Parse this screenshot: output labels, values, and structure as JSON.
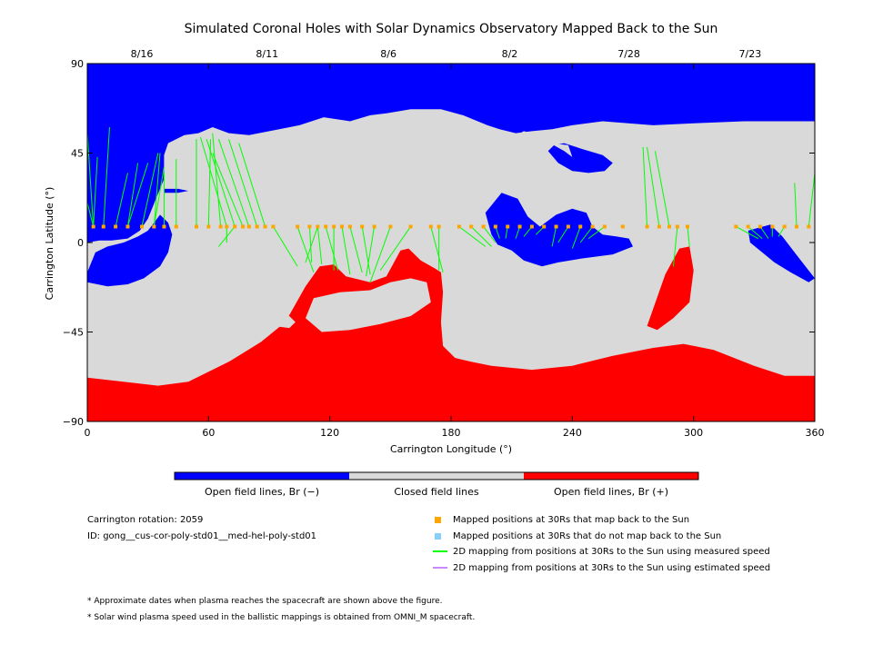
{
  "chart_data": {
    "type": "map",
    "title": "Simulated Coronal Holes with Solar Dynamics Observatory Mapped Back to the Sun",
    "xlabel": "Carrington Longitude (°)",
    "ylabel": "Carrington Latitude (°)",
    "xlim": [
      0,
      360
    ],
    "ylim": [
      -90,
      90
    ],
    "x_ticks": [
      "0",
      "60",
      "120",
      "180",
      "240",
      "300",
      "360"
    ],
    "y_ticks": [
      "90",
      "45",
      "0",
      "−45",
      "−90"
    ],
    "top_dates": [
      {
        "label": "8/16",
        "lon": 27
      },
      {
        "label": "8/11",
        "lon": 89
      },
      {
        "label": "8/6",
        "lon": 149
      },
      {
        "label": "8/2",
        "lon": 209
      },
      {
        "label": "7/28",
        "lon": 268
      },
      {
        "label": "7/23",
        "lon": 328
      }
    ],
    "colors": {
      "negative": "#0000ff",
      "closed": "#d9d9d9",
      "positive": "#ff0000",
      "mapped": "#ffa500",
      "unmapped": "#87cefa",
      "measured": "#00ff00",
      "estimated": "#cc88ff"
    },
    "regions": {
      "north_negative_hole": [
        [
          0,
          90
        ],
        [
          360,
          90
        ],
        [
          360,
          61
        ],
        [
          345,
          61
        ],
        [
          325,
          61
        ],
        [
          300,
          60
        ],
        [
          280,
          59
        ],
        [
          255,
          61
        ],
        [
          240,
          59
        ],
        [
          230,
          57
        ],
        [
          220,
          56
        ],
        [
          212,
          55
        ],
        [
          204,
          57
        ],
        [
          198,
          59
        ],
        [
          186,
          64
        ],
        [
          175,
          67
        ],
        [
          160,
          67
        ],
        [
          148,
          65
        ],
        [
          140,
          64
        ],
        [
          130,
          61
        ],
        [
          117,
          63
        ],
        [
          105,
          59
        ],
        [
          95,
          57
        ],
        [
          80,
          54
        ],
        [
          70,
          55
        ],
        [
          62,
          58
        ],
        [
          55,
          55
        ],
        [
          48,
          54
        ],
        [
          40,
          50
        ],
        [
          38,
          44
        ],
        [
          38,
          32
        ],
        [
          34,
          22
        ],
        [
          30,
          12
        ],
        [
          26,
          6
        ],
        [
          20,
          2
        ],
        [
          12,
          1
        ],
        [
          6,
          1
        ],
        [
          0,
          0
        ]
      ],
      "north_negative_lobe": [
        [
          216,
          56
        ],
        [
          207,
          51
        ],
        [
          207,
          46
        ],
        [
          212,
          43
        ],
        [
          220,
          44
        ],
        [
          224,
          50
        ],
        [
          220,
          55
        ]
      ],
      "pole_loop_a": [
        [
          228,
          46
        ],
        [
          233,
          40
        ],
        [
          240,
          36
        ],
        [
          248,
          35
        ],
        [
          256,
          36
        ],
        [
          260,
          40
        ],
        [
          255,
          44
        ],
        [
          245,
          47
        ],
        [
          236,
          50
        ],
        [
          231,
          49
        ]
      ],
      "pole_loop_b": [
        [
          229,
          50
        ],
        [
          236,
          46
        ],
        [
          240,
          43
        ],
        [
          238,
          49
        ]
      ],
      "tongue_west": [
        [
          38,
          27
        ],
        [
          45,
          27
        ],
        [
          50,
          26
        ],
        [
          45,
          25
        ],
        [
          38,
          25
        ]
      ],
      "south_negative_hole_west": [
        [
          0,
          -15
        ],
        [
          0,
          -20
        ],
        [
          10,
          -22
        ],
        [
          20,
          -21
        ],
        [
          28,
          -18
        ],
        [
          36,
          -12
        ],
        [
          40,
          -5
        ],
        [
          42,
          4
        ],
        [
          40,
          10
        ],
        [
          36,
          14
        ],
        [
          30,
          6
        ],
        [
          25,
          3
        ],
        [
          18,
          0
        ],
        [
          10,
          -2
        ],
        [
          4,
          -5
        ]
      ],
      "cross_hole_center": [
        [
          197,
          15
        ],
        [
          205,
          25
        ],
        [
          213,
          22
        ],
        [
          218,
          13
        ],
        [
          224,
          8
        ],
        [
          232,
          14
        ],
        [
          240,
          17
        ],
        [
          247,
          15
        ],
        [
          250,
          8
        ],
        [
          255,
          4
        ],
        [
          262,
          3
        ],
        [
          268,
          2
        ],
        [
          270,
          -2
        ],
        [
          260,
          -6
        ],
        [
          245,
          -8
        ],
        [
          233,
          -10
        ],
        [
          225,
          -12
        ],
        [
          216,
          -9
        ],
        [
          210,
          -4
        ],
        [
          203,
          -1
        ],
        [
          200,
          4
        ]
      ],
      "small_hole_right": [
        [
          327,
          6
        ],
        [
          338,
          9
        ],
        [
          344,
          3
        ],
        [
          350,
          -5
        ],
        [
          360,
          -18
        ],
        [
          357,
          -20
        ],
        [
          348,
          -15
        ],
        [
          340,
          -10
        ],
        [
          334,
          -5
        ],
        [
          328,
          0
        ]
      ],
      "south_positive_main": [
        [
          0,
          -68
        ],
        [
          35,
          -72
        ],
        [
          50,
          -70
        ],
        [
          70,
          -60
        ],
        [
          86,
          -50
        ],
        [
          98,
          -40
        ],
        [
          108,
          -22
        ],
        [
          115,
          -12
        ],
        [
          122,
          -11
        ],
        [
          128,
          -17
        ],
        [
          140,
          -20
        ],
        [
          148,
          -17
        ],
        [
          155,
          -4
        ],
        [
          159,
          -3
        ],
        [
          165,
          -9
        ],
        [
          172,
          -13
        ],
        [
          175,
          -15
        ],
        [
          176,
          -25
        ],
        [
          175,
          -40
        ],
        [
          176,
          -52
        ],
        [
          182,
          -58
        ],
        [
          190,
          -60
        ],
        [
          200,
          -62
        ],
        [
          220,
          -64
        ],
        [
          240,
          -62
        ],
        [
          260,
          -57
        ],
        [
          280,
          -53
        ],
        [
          295,
          -51
        ],
        [
          310,
          -54
        ],
        [
          330,
          -62
        ],
        [
          345,
          -67
        ],
        [
          360,
          -67
        ],
        [
          360,
          -90
        ],
        [
          0,
          -90
        ]
      ],
      "positive_flare": [
        [
          277,
          -42
        ],
        [
          286,
          -16
        ],
        [
          293,
          -3
        ],
        [
          298,
          -2
        ],
        [
          300,
          -14
        ],
        [
          298,
          -30
        ],
        [
          290,
          -38
        ],
        [
          282,
          -44
        ]
      ],
      "closed_island_left": [
        [
          90,
          -39
        ],
        [
          100,
          -37
        ],
        [
          103,
          -40
        ],
        [
          100,
          -43
        ],
        [
          92,
          -42
        ]
      ],
      "closed_island_center": [
        [
          108,
          -38
        ],
        [
          112,
          -28
        ],
        [
          125,
          -25
        ],
        [
          140,
          -24
        ],
        [
          150,
          -20
        ],
        [
          160,
          -18
        ],
        [
          168,
          -20
        ],
        [
          170,
          -30
        ],
        [
          160,
          -37
        ],
        [
          145,
          -41
        ],
        [
          130,
          -44
        ],
        [
          116,
          -45
        ]
      ]
    },
    "mapping": [
      {
        "x": 3,
        "y": 8,
        "to": [
          [
            5,
            43
          ],
          [
            0,
            55
          ],
          [
            0,
            20
          ]
        ]
      },
      {
        "x": 8,
        "y": 8,
        "to": [
          [
            11,
            58
          ]
        ]
      },
      {
        "x": 14,
        "y": 8,
        "to": [
          [
            20,
            35
          ]
        ]
      },
      {
        "x": 20,
        "y": 8,
        "to": [
          [
            30,
            40
          ],
          [
            25,
            40
          ]
        ]
      },
      {
        "x": 27,
        "y": 8,
        "to": [
          [
            35,
            45
          ]
        ]
      },
      {
        "x": 33,
        "y": 8,
        "to": [
          [
            38,
            38
          ],
          [
            36,
            45
          ]
        ]
      },
      {
        "x": 38,
        "y": 8,
        "to": [
          [
            38,
            35
          ]
        ]
      },
      {
        "x": 44,
        "y": 8,
        "to": [
          [
            44,
            42
          ]
        ]
      },
      {
        "x": 54,
        "y": 8,
        "to": [
          [
            54,
            52
          ]
        ]
      },
      {
        "x": 60,
        "y": 8,
        "to": [
          [
            61,
            52
          ]
        ]
      },
      {
        "x": 66,
        "y": 8,
        "to": [
          [
            62,
            55
          ]
        ]
      },
      {
        "x": 69,
        "y": 8,
        "to": [
          [
            56,
            53
          ],
          [
            69,
            0
          ]
        ]
      },
      {
        "x": 73,
        "y": 8,
        "to": [
          [
            59,
            52
          ],
          [
            65,
            -2
          ]
        ]
      },
      {
        "x": 77,
        "y": 8,
        "to": [
          [
            62,
            45
          ]
        ]
      },
      {
        "x": 80,
        "y": 8,
        "to": [
          [
            65,
            52
          ]
        ]
      },
      {
        "x": 84,
        "y": 8,
        "to": [
          [
            70,
            52
          ]
        ]
      },
      {
        "x": 88,
        "y": 8,
        "to": [
          [
            75,
            50
          ]
        ]
      },
      {
        "x": 92,
        "y": 8,
        "to": [
          [
            104,
            -12
          ]
        ]
      },
      {
        "x": 104,
        "y": 8,
        "to": [
          [
            112,
            -15
          ]
        ]
      },
      {
        "x": 110,
        "y": 8,
        "to": [
          [
            111,
            -10
          ]
        ]
      },
      {
        "x": 114,
        "y": 8,
        "to": [
          [
            108,
            -10
          ],
          [
            116,
            -11
          ]
        ]
      },
      {
        "x": 118,
        "y": 8,
        "to": [
          [
            124,
            -14
          ]
        ]
      },
      {
        "x": 122,
        "y": 8,
        "to": [
          [
            122,
            -14
          ]
        ]
      },
      {
        "x": 126,
        "y": 8,
        "to": [
          [
            130,
            -16
          ]
        ]
      },
      {
        "x": 130,
        "y": 8,
        "to": [
          [
            136,
            -15
          ]
        ]
      },
      {
        "x": 136,
        "y": 8,
        "to": [
          [
            140,
            -16
          ]
        ]
      },
      {
        "x": 142,
        "y": 8,
        "to": [
          [
            138,
            -17
          ]
        ]
      },
      {
        "x": 150,
        "y": 8,
        "to": [
          [
            140,
            -20
          ]
        ]
      },
      {
        "x": 160,
        "y": 8,
        "to": [
          [
            145,
            -14
          ]
        ]
      },
      {
        "x": 170,
        "y": 8,
        "to": [
          [
            176,
            -15
          ]
        ]
      },
      {
        "x": 174,
        "y": 8,
        "to": [
          [
            174,
            -14
          ]
        ]
      },
      {
        "x": 184,
        "y": 8,
        "to": [
          [
            197,
            -2
          ]
        ]
      },
      {
        "x": 190,
        "y": 8,
        "to": [
          [
            200,
            -2
          ]
        ]
      },
      {
        "x": 196,
        "y": 8,
        "to": [
          [
            202,
            0
          ]
        ]
      },
      {
        "x": 202,
        "y": 8,
        "to": [
          [
            204,
            2
          ]
        ]
      },
      {
        "x": 208,
        "y": 8,
        "to": [
          [
            207,
            2
          ]
        ]
      },
      {
        "x": 214,
        "y": 8,
        "to": [
          [
            212,
            2
          ]
        ]
      },
      {
        "x": 220,
        "y": 8,
        "to": [
          [
            216,
            3
          ]
        ]
      },
      {
        "x": 226,
        "y": 8,
        "to": [
          [
            222,
            4
          ]
        ]
      },
      {
        "x": 232,
        "y": 8,
        "to": [
          [
            230,
            -2
          ]
        ]
      },
      {
        "x": 238,
        "y": 8,
        "to": [
          [
            233,
            0
          ]
        ]
      },
      {
        "x": 244,
        "y": 8,
        "to": [
          [
            240,
            -3
          ]
        ]
      },
      {
        "x": 250,
        "y": 8,
        "to": [
          [
            244,
            0
          ]
        ]
      },
      {
        "x": 256,
        "y": 8,
        "to": [
          [
            248,
            2
          ]
        ]
      },
      {
        "x": 265,
        "y": 8,
        "to": [
          [
            264,
            8
          ]
        ]
      },
      {
        "x": 277,
        "y": 8,
        "to": [
          [
            275,
            48
          ]
        ]
      },
      {
        "x": 283,
        "y": 8,
        "to": [
          [
            277,
            48
          ]
        ]
      },
      {
        "x": 288,
        "y": 8,
        "to": [
          [
            281,
            46
          ]
        ]
      },
      {
        "x": 292,
        "y": 8,
        "to": [
          [
            290,
            -12
          ]
        ]
      },
      {
        "x": 297,
        "y": 8,
        "to": [
          [
            298,
            -2
          ]
        ]
      },
      {
        "x": 321,
        "y": 8,
        "to": [
          [
            332,
            2
          ]
        ]
      },
      {
        "x": 327,
        "y": 8,
        "to": [
          [
            334,
            2
          ]
        ]
      },
      {
        "x": 333,
        "y": 8,
        "to": [
          [
            337,
            2
          ]
        ]
      },
      {
        "x": 339,
        "y": 8,
        "to": [
          [
            339,
            3
          ]
        ]
      },
      {
        "x": 345,
        "y": 8,
        "to": [
          [
            342,
            3
          ]
        ]
      },
      {
        "x": 351,
        "y": 8,
        "to": [
          [
            350,
            30
          ]
        ]
      },
      {
        "x": 357,
        "y": 8,
        "to": [
          [
            360,
            35
          ]
        ]
      }
    ]
  },
  "colorbar": {
    "labels": [
      "Open field lines, Br (−)",
      "Closed field lines",
      "Open field lines, Br (+)"
    ]
  },
  "info": {
    "rotation": "Carrington rotation: 2059",
    "id": "ID: gong__cus-cor-poly-std01__med-hel-poly-std01"
  },
  "legend": {
    "mapped": "Mapped positions at 30Rs that map back to the Sun",
    "unmapped": "Mapped positions at 30Rs that do not map back to the Sun",
    "measured": "2D mapping from positions at 30Rs to the Sun using measured speed",
    "estimated": "2D mapping from positions at 30Rs to the Sun using estimated speed"
  },
  "notes": [
    "* Approximate dates when plasma reaches the spacecraft are shown above the figure.",
    "* Solar wind plasma speed used in the ballistic mappings is obtained from OMNI_M spacecraft."
  ]
}
